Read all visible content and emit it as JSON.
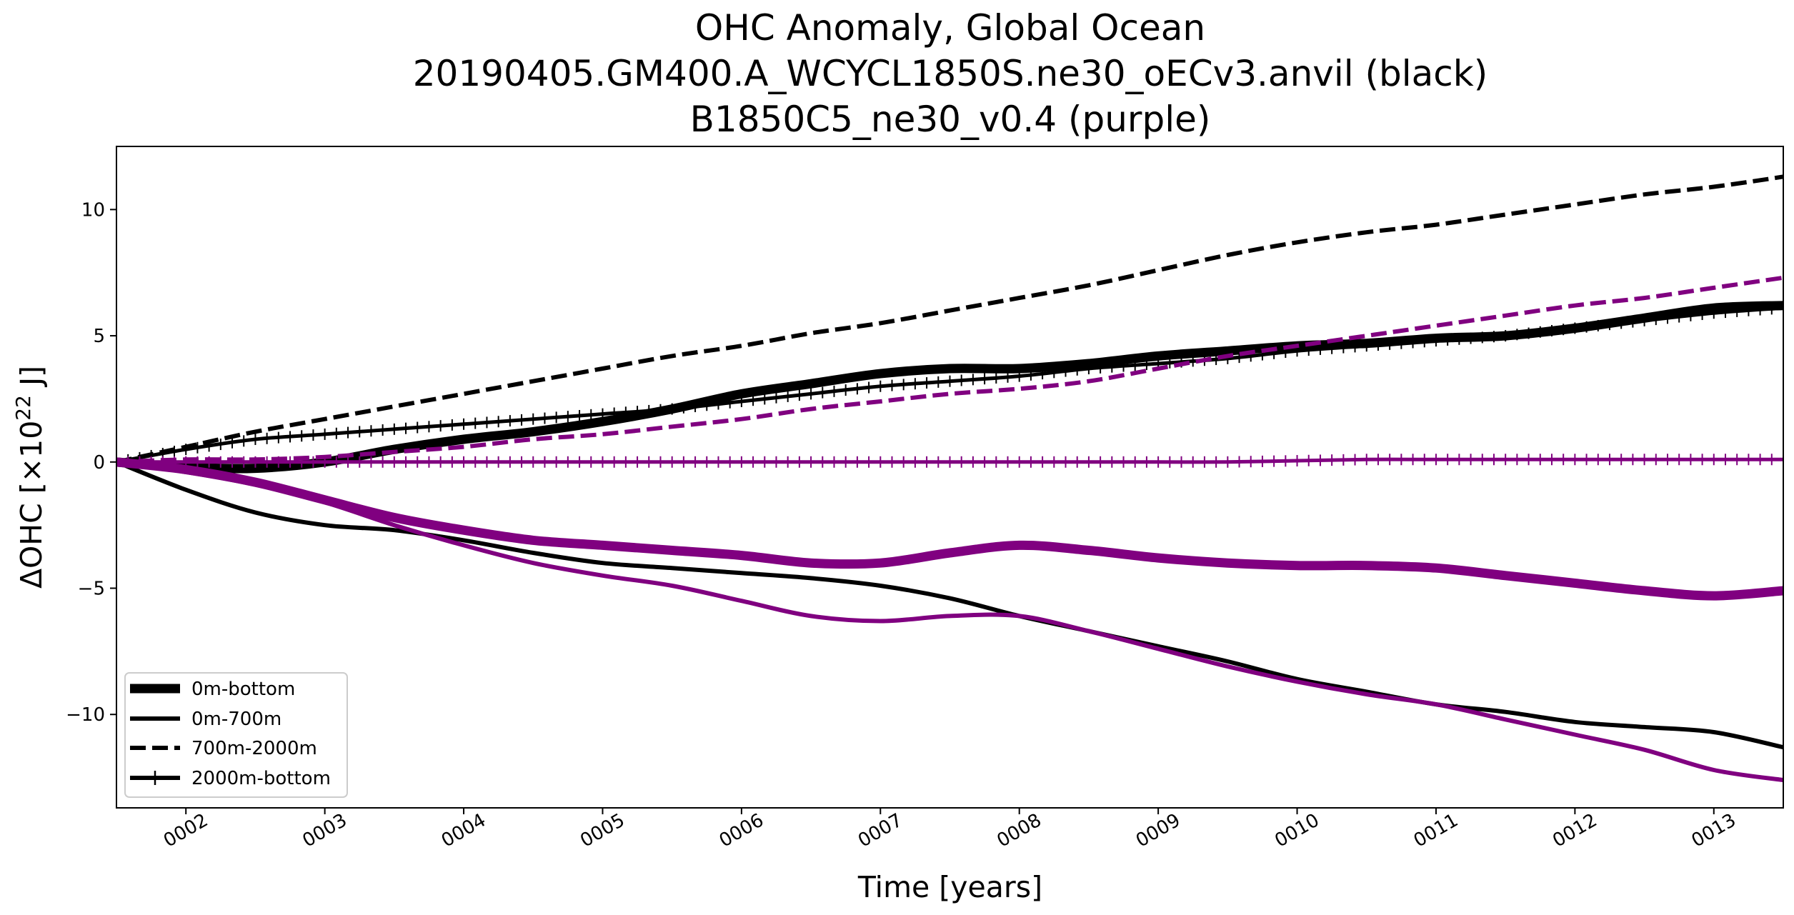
{
  "chart_data": {
    "type": "line",
    "title_lines": [
      "OHC Anomaly, Global Ocean",
      "20190405.GM400.A_WCYCL1850S.ne30_oECv3.anvil (black)",
      "B1850C5_ne30_v0.4 (purple)"
    ],
    "xlabel": "Time [years]",
    "ylabel_prefix": "ΔOHC [×10",
    "ylabel_exponent": "22",
    "ylabel_suffix": " J]",
    "xlim": [
      1.5,
      13.5
    ],
    "ylim": [
      -13.7,
      12.5
    ],
    "x_ticks": [
      {
        "value": 2,
        "label": "0002"
      },
      {
        "value": 3,
        "label": "0003"
      },
      {
        "value": 4,
        "label": "0004"
      },
      {
        "value": 5,
        "label": "0005"
      },
      {
        "value": 6,
        "label": "0006"
      },
      {
        "value": 7,
        "label": "0007"
      },
      {
        "value": 8,
        "label": "0008"
      },
      {
        "value": 9,
        "label": "0009"
      },
      {
        "value": 10,
        "label": "0010"
      },
      {
        "value": 11,
        "label": "0011"
      },
      {
        "value": 12,
        "label": "0012"
      },
      {
        "value": 13,
        "label": "0013"
      }
    ],
    "y_ticks": [
      {
        "value": 10,
        "label": "10"
      },
      {
        "value": 5,
        "label": "5"
      },
      {
        "value": 0,
        "label": "0"
      },
      {
        "value": -5,
        "label": "−5"
      },
      {
        "value": -10,
        "label": "−10"
      }
    ],
    "colors": {
      "black": "#000000",
      "purple": "#800080"
    },
    "legend": [
      {
        "label": "0m-bottom",
        "style": "thick"
      },
      {
        "label": "0m-700m",
        "style": "solid"
      },
      {
        "label": "700m-2000m",
        "style": "dashed"
      },
      {
        "label": "2000m-bottom",
        "style": "plus"
      }
    ],
    "series": [
      {
        "name": "0m-bottom (black)",
        "color": "black",
        "style": "thick",
        "x": [
          1.5,
          2,
          2.5,
          3,
          3.5,
          4,
          4.5,
          5,
          5.5,
          6,
          6.5,
          7,
          7.5,
          8,
          8.5,
          9,
          9.5,
          10,
          10.5,
          11,
          11.5,
          12,
          12.5,
          13,
          13.5
        ],
        "y": [
          0,
          -0.2,
          -0.25,
          0,
          0.5,
          0.9,
          1.2,
          1.6,
          2.1,
          2.7,
          3.1,
          3.5,
          3.7,
          3.7,
          3.9,
          4.2,
          4.4,
          4.6,
          4.7,
          4.9,
          5.0,
          5.3,
          5.7,
          6.1,
          6.2
        ]
      },
      {
        "name": "0m-700m (black)",
        "color": "black",
        "style": "solid",
        "x": [
          1.5,
          2,
          2.5,
          3,
          3.5,
          4,
          4.5,
          5,
          5.5,
          6,
          6.5,
          7,
          7.5,
          8,
          8.5,
          9,
          9.5,
          10,
          10.5,
          11,
          11.5,
          12,
          12.5,
          13,
          13.5
        ],
        "y": [
          0,
          -1.1,
          -2.0,
          -2.5,
          -2.7,
          -3.1,
          -3.6,
          -4.0,
          -4.2,
          -4.4,
          -4.6,
          -4.9,
          -5.4,
          -6.1,
          -6.7,
          -7.3,
          -7.9,
          -8.6,
          -9.1,
          -9.6,
          -9.9,
          -10.3,
          -10.5,
          -10.7,
          -11.3
        ]
      },
      {
        "name": "700m-2000m (black)",
        "color": "black",
        "style": "dashed",
        "x": [
          1.5,
          2,
          2.5,
          3,
          3.5,
          4,
          4.5,
          5,
          5.5,
          6,
          6.5,
          7,
          7.5,
          8,
          8.5,
          9,
          9.5,
          10,
          10.5,
          11,
          11.5,
          12,
          12.5,
          13,
          13.5
        ],
        "y": [
          0,
          0.6,
          1.2,
          1.7,
          2.2,
          2.7,
          3.2,
          3.7,
          4.2,
          4.6,
          5.1,
          5.5,
          6.0,
          6.5,
          7.0,
          7.6,
          8.2,
          8.7,
          9.1,
          9.4,
          9.8,
          10.2,
          10.6,
          10.9,
          11.3
        ]
      },
      {
        "name": "2000m-bottom (black)",
        "color": "black",
        "style": "plus",
        "x": [
          1.5,
          2,
          2.5,
          3,
          3.5,
          4,
          4.5,
          5,
          5.5,
          6,
          6.5,
          7,
          7.5,
          8,
          8.5,
          9,
          9.5,
          10,
          10.5,
          11,
          11.5,
          12,
          12.5,
          13,
          13.5
        ],
        "y": [
          0,
          0.5,
          0.9,
          1.1,
          1.3,
          1.5,
          1.7,
          1.9,
          2.1,
          2.4,
          2.7,
          3.0,
          3.2,
          3.4,
          3.7,
          3.9,
          4.1,
          4.4,
          4.6,
          4.8,
          5.0,
          5.3,
          5.6,
          5.9,
          6.1
        ]
      },
      {
        "name": "0m-bottom (purple)",
        "color": "purple",
        "style": "thick",
        "x": [
          1.5,
          2,
          2.5,
          3,
          3.5,
          4,
          4.5,
          5,
          5.5,
          6,
          6.5,
          7,
          7.5,
          8,
          8.5,
          9,
          9.5,
          10,
          10.5,
          11,
          11.5,
          12,
          12.5,
          13,
          13.5
        ],
        "y": [
          0,
          -0.3,
          -0.8,
          -1.5,
          -2.2,
          -2.7,
          -3.1,
          -3.3,
          -3.5,
          -3.7,
          -4.0,
          -4.0,
          -3.6,
          -3.3,
          -3.5,
          -3.8,
          -4.0,
          -4.1,
          -4.1,
          -4.2,
          -4.5,
          -4.8,
          -5.1,
          -5.3,
          -5.1
        ]
      },
      {
        "name": "0m-700m (purple)",
        "color": "purple",
        "style": "solid",
        "x": [
          1.5,
          2,
          2.5,
          3,
          3.5,
          4,
          4.5,
          5,
          5.5,
          6,
          6.5,
          7,
          7.5,
          8,
          8.5,
          9,
          9.5,
          10,
          10.5,
          11,
          11.5,
          12,
          12.5,
          13,
          13.5
        ],
        "y": [
          0,
          -0.4,
          -0.9,
          -1.6,
          -2.5,
          -3.3,
          -4.0,
          -4.5,
          -4.9,
          -5.5,
          -6.1,
          -6.3,
          -6.1,
          -6.1,
          -6.7,
          -7.4,
          -8.1,
          -8.7,
          -9.2,
          -9.6,
          -10.2,
          -10.8,
          -11.4,
          -12.2,
          -12.6
        ]
      },
      {
        "name": "700m-2000m (purple)",
        "color": "purple",
        "style": "dashed",
        "x": [
          1.5,
          2,
          2.5,
          3,
          3.5,
          4,
          4.5,
          5,
          5.5,
          6,
          6.5,
          7,
          7.5,
          8,
          8.5,
          9,
          9.5,
          10,
          10.5,
          11,
          11.5,
          12,
          12.5,
          13,
          13.5
        ],
        "y": [
          0,
          0.1,
          0.1,
          0.2,
          0.4,
          0.6,
          0.9,
          1.1,
          1.4,
          1.7,
          2.1,
          2.4,
          2.7,
          2.9,
          3.2,
          3.7,
          4.2,
          4.6,
          5.0,
          5.4,
          5.8,
          6.2,
          6.5,
          6.9,
          7.3
        ]
      },
      {
        "name": "2000m-bottom (purple)",
        "color": "purple",
        "style": "plus",
        "x": [
          1.5,
          2,
          2.5,
          3,
          3.5,
          4,
          4.5,
          5,
          5.5,
          6,
          6.5,
          7,
          7.5,
          8,
          8.5,
          9,
          9.5,
          10,
          10.5,
          11,
          11.5,
          12,
          12.5,
          13,
          13.5
        ],
        "y": [
          0,
          0,
          0,
          0,
          0,
          0,
          0,
          0,
          0,
          0,
          0,
          0,
          0,
          0,
          0,
          0,
          0,
          0.05,
          0.1,
          0.1,
          0.1,
          0.1,
          0.1,
          0.1,
          0.1
        ]
      }
    ]
  }
}
